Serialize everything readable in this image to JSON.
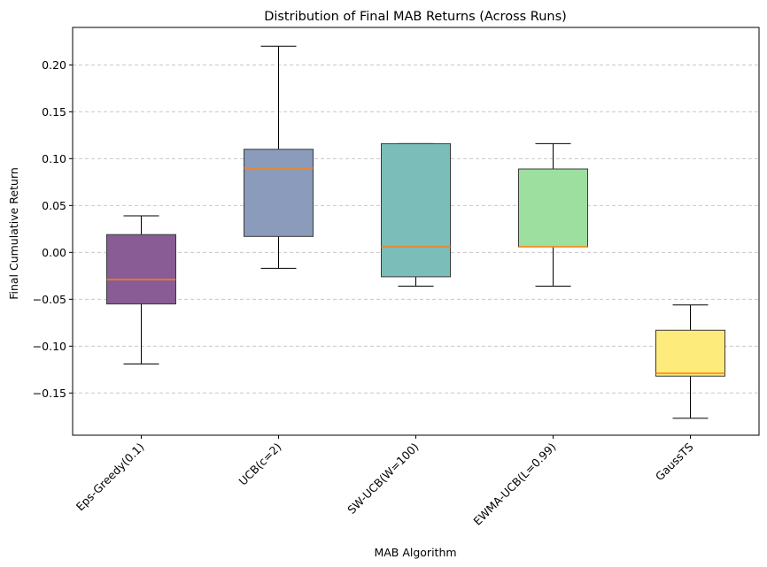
{
  "chart_data": {
    "type": "box",
    "title": "Distribution of Final MAB Returns (Across Runs)",
    "xlabel": "MAB Algorithm",
    "ylabel": "Final Cumulative Return",
    "ylim": [
      -0.195,
      0.24
    ],
    "yticks": [
      -0.15,
      -0.1,
      -0.05,
      0.0,
      0.05,
      0.1,
      0.15,
      0.2
    ],
    "ytick_labels": [
      "−0.15",
      "−0.10",
      "−0.05",
      "0.00",
      "0.05",
      "0.10",
      "0.15",
      "0.20"
    ],
    "grid": "y-dashed",
    "categories": [
      "Eps-Greedy(0.1)",
      "UCB(c=2)",
      "SW-UCB(W=100)",
      "EWMA-UCB(L=0.99)",
      "GaussTS"
    ],
    "boxes": [
      {
        "whisker_low": -0.119,
        "q1": -0.055,
        "median": -0.029,
        "q3": 0.019,
        "whisker_high": 0.039,
        "color": "#8a5c96"
      },
      {
        "whisker_low": -0.017,
        "q1": 0.017,
        "median": 0.09,
        "q3": 0.11,
        "whisker_high": 0.22,
        "color": "#8a9bbb"
      },
      {
        "whisker_low": -0.036,
        "q1": -0.026,
        "median": 0.006,
        "q3": 0.116,
        "whisker_high": 0.116,
        "color": "#7bbdb9"
      },
      {
        "whisker_low": -0.036,
        "q1": 0.006,
        "median": 0.006,
        "q3": 0.089,
        "whisker_high": 0.116,
        "color": "#9ddf9f"
      },
      {
        "whisker_low": -0.177,
        "q1": -0.132,
        "median": -0.129,
        "q3": -0.083,
        "whisker_high": -0.056,
        "color": "#fdec7c"
      }
    ],
    "median_color": "#ff7f0e"
  }
}
